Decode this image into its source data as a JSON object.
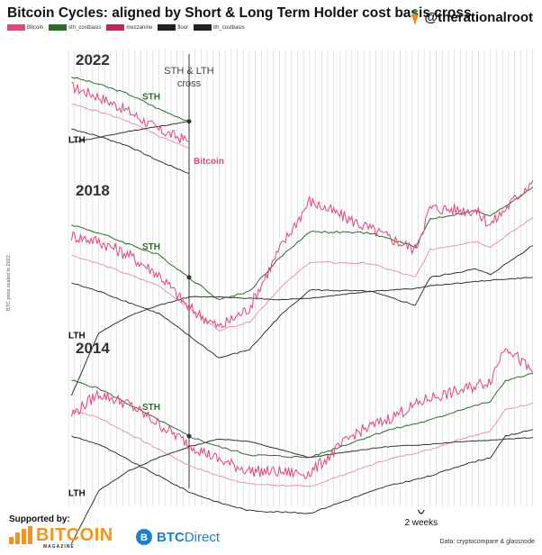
{
  "title": "Bitcoin Cycles: aligned by Short & Long Term Holder cost basis cross",
  "handle": "@therationalroot",
  "legend": [
    {
      "label": "Bitcoin",
      "color": "#e8457a"
    },
    {
      "label": "sth_costbasis",
      "color": "#2e6b2a"
    },
    {
      "label": "mezzanine",
      "color": "#cc2255"
    },
    {
      "label": "floor",
      "color": "#222222"
    },
    {
      "label": "lth_costbasis",
      "color": "#222222"
    }
  ],
  "annotations": {
    "cross_label": "STH & LTH cross",
    "two_weeks": "2 weeks",
    "y_axis": "BTC price scaled to 2022",
    "bitcoin_label": "Bitcoin"
  },
  "footer": {
    "supported_by": "Supported by:",
    "brand1": "BITCOIN",
    "brand1_sub": "MAGAZINE",
    "brand2_a": "BTC",
    "brand2_b": "Direct",
    "source": "Data: cryptocompare & glassnode"
  },
  "colors": {
    "bitcoin": "#e8457a",
    "sth": "#2e6b2a",
    "mezzanine": "#e88aa8",
    "lth": "#333333",
    "floor": "#222222",
    "grid": "#d9d9d9",
    "brand_orange": "#f7931a",
    "brand_blue": "#1c7fd0"
  },
  "chart_data": {
    "type": "line",
    "title": "Bitcoin Cycles: aligned by Short & Long Term Holder cost basis cross",
    "x_unit": "weeks relative to STH & LTH cost basis cross",
    "x_tick_spacing_weeks": 2,
    "y_label": "BTC price scaled to 2022",
    "grid": true,
    "cycles": [
      {
        "name": "2022",
        "x": [
          -39,
          -30,
          -20,
          -10,
          0
        ],
        "series": [
          {
            "name": "Bitcoin",
            "values": [
              90,
              82,
              70,
              55,
              46
            ]
          },
          {
            "name": "STH",
            "values": [
              98,
              92,
              84,
              72,
              62
            ]
          },
          {
            "name": "LTH",
            "values": [
              45,
              49,
              54,
              58,
              62
            ]
          }
        ]
      },
      {
        "name": "2018",
        "x": [
          -39,
          -30,
          -20,
          -10,
          0,
          10,
          20,
          30,
          40,
          60,
          75,
          80,
          95,
          100,
          114
        ],
        "series": [
          {
            "name": "Bitcoin",
            "values": [
              80,
              76,
              66,
              52,
              28,
              14,
              28,
              70,
              105,
              85,
              70,
              100,
              98,
              88,
              120
            ]
          },
          {
            "name": "STH",
            "values": [
              88,
              82,
              74,
              66,
              50,
              34,
              40,
              64,
              83,
              82,
              72,
              92,
              98,
              94,
              115
            ]
          },
          {
            "name": "LTH",
            "values": [
              -35,
              10,
              22,
              30,
              36,
              36,
              35,
              34,
              35,
              40,
              42,
              44,
              47,
              48,
              50
            ]
          }
        ]
      },
      {
        "name": "2014",
        "x": [
          -39,
          -30,
          -20,
          -10,
          0,
          10,
          20,
          40,
          55,
          65,
          80,
          90,
          100,
          105,
          114
        ],
        "series": [
          {
            "name": "Bitcoin",
            "values": [
              62,
              78,
              70,
              55,
              40,
              28,
              20,
              18,
              48,
              58,
              75,
              80,
              88,
              115,
              93
            ]
          },
          {
            "name": "STH",
            "values": [
              88,
              82,
              70,
              58,
              46,
              38,
              32,
              30,
              42,
              50,
              58,
              66,
              72,
              88,
              93
            ]
          },
          {
            "name": "LTH",
            "values": [
              -35,
              5,
              20,
              30,
              38,
              44,
              42,
              30,
              35,
              38,
              40,
              42,
              43,
              44,
              45
            ]
          }
        ]
      }
    ]
  }
}
